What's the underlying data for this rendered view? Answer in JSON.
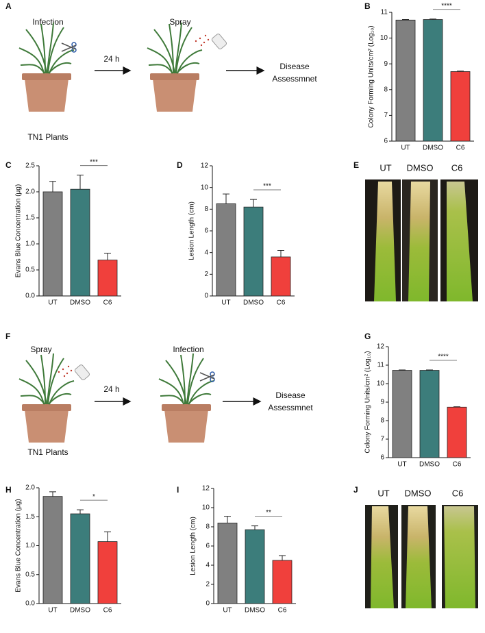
{
  "panels": [
    "A",
    "B",
    "C",
    "D",
    "E",
    "F",
    "G",
    "H",
    "I",
    "J"
  ],
  "scheme_a": {
    "step1": "Infection",
    "interval": "24 h",
    "step2": "Spray",
    "outcome_line1": "Disease",
    "outcome_line2": "Assessmnet",
    "plants": "TN1 Plants"
  },
  "scheme_f": {
    "step1": "Spray",
    "interval": "24 h",
    "step2": "Infection",
    "outcome_line1": "Disease",
    "outcome_line2": "Assessmnet",
    "plants": "TN1 Plants"
  },
  "photo_e": {
    "labels": [
      "UT",
      "DMSO",
      "C6"
    ]
  },
  "photo_j": {
    "labels": [
      "UT",
      "DMSO",
      "C6"
    ]
  },
  "chart_data": [
    {
      "type": "bar",
      "ylabel": "Colony Forming Units/cm² (Log₁₀)",
      "categories": [
        "UT",
        "DMSO",
        "C6"
      ],
      "values": [
        10.7,
        10.72,
        8.7
      ],
      "errors": [
        0.02,
        0.02,
        0.02
      ],
      "colors": [
        "#808080",
        "#3c7d7b",
        "#f0403c"
      ],
      "ylim": [
        6,
        11
      ],
      "yticks": [
        6,
        7,
        8,
        9,
        10,
        11
      ],
      "annotation": "****"
    },
    {
      "type": "bar",
      "ylabel": "Evans Blue Concentration (μg)",
      "categories": [
        "UT",
        "DMSO",
        "C6"
      ],
      "values": [
        2.0,
        2.05,
        0.69
      ],
      "errors": [
        0.2,
        0.27,
        0.13
      ],
      "colors": [
        "#808080",
        "#3c7d7b",
        "#f0403c"
      ],
      "ylim": [
        0,
        2.5
      ],
      "yticks": [
        {
          "value": 0,
          "label": "0.0"
        },
        0.5,
        {
          "value": 1,
          "label": "1.0"
        },
        1.5,
        {
          "value": 2,
          "label": "2.0"
        },
        2.5
      ],
      "annotation": "***"
    },
    {
      "type": "bar",
      "ylabel": "Lesion Length (cm)",
      "categories": [
        "UT",
        "DMSO",
        "C6"
      ],
      "values": [
        8.5,
        8.2,
        3.6
      ],
      "errors": [
        0.9,
        0.7,
        0.6
      ],
      "colors": [
        "#808080",
        "#3c7d7b",
        "#f0403c"
      ],
      "ylim": [
        0,
        12
      ],
      "yticks": [
        0,
        2,
        4,
        6,
        8,
        10,
        12
      ],
      "annotation": "***"
    },
    {
      "type": "bar",
      "ylabel": "Colony Forming Units/cm² (Log₁₀)",
      "categories": [
        "UT",
        "DMSO",
        "C6"
      ],
      "values": [
        10.72,
        10.72,
        8.73
      ],
      "errors": [
        0.02,
        0.02,
        0.02
      ],
      "colors": [
        "#808080",
        "#3c7d7b",
        "#f0403c"
      ],
      "ylim": [
        6,
        12
      ],
      "yticks": [
        6,
        7,
        8,
        9,
        10,
        11,
        12
      ],
      "annotation": "****"
    },
    {
      "type": "bar",
      "ylabel": "Evans Blue Concentration (μg)",
      "categories": [
        "UT",
        "DMSO",
        "C6"
      ],
      "values": [
        1.85,
        1.55,
        1.07
      ],
      "errors": [
        0.08,
        0.07,
        0.17
      ],
      "colors": [
        "#808080",
        "#3c7d7b",
        "#f0403c"
      ],
      "ylim": [
        0,
        2
      ],
      "yticks": [
        {
          "value": 0,
          "label": "0.0"
        },
        0.5,
        {
          "value": 1,
          "label": "1.0"
        },
        1.5,
        {
          "value": 2,
          "label": "2.0"
        }
      ],
      "annotation": "*"
    },
    {
      "type": "bar",
      "ylabel": "Lesion Length (cm)",
      "categories": [
        "UT",
        "DMSO",
        "C6"
      ],
      "values": [
        8.4,
        7.7,
        4.5
      ],
      "errors": [
        0.7,
        0.4,
        0.5
      ],
      "colors": [
        "#808080",
        "#3c7d7b",
        "#f0403c"
      ],
      "ylim": [
        0,
        12
      ],
      "yticks": [
        0,
        2,
        4,
        6,
        8,
        10,
        12
      ],
      "annotation": "**"
    }
  ]
}
